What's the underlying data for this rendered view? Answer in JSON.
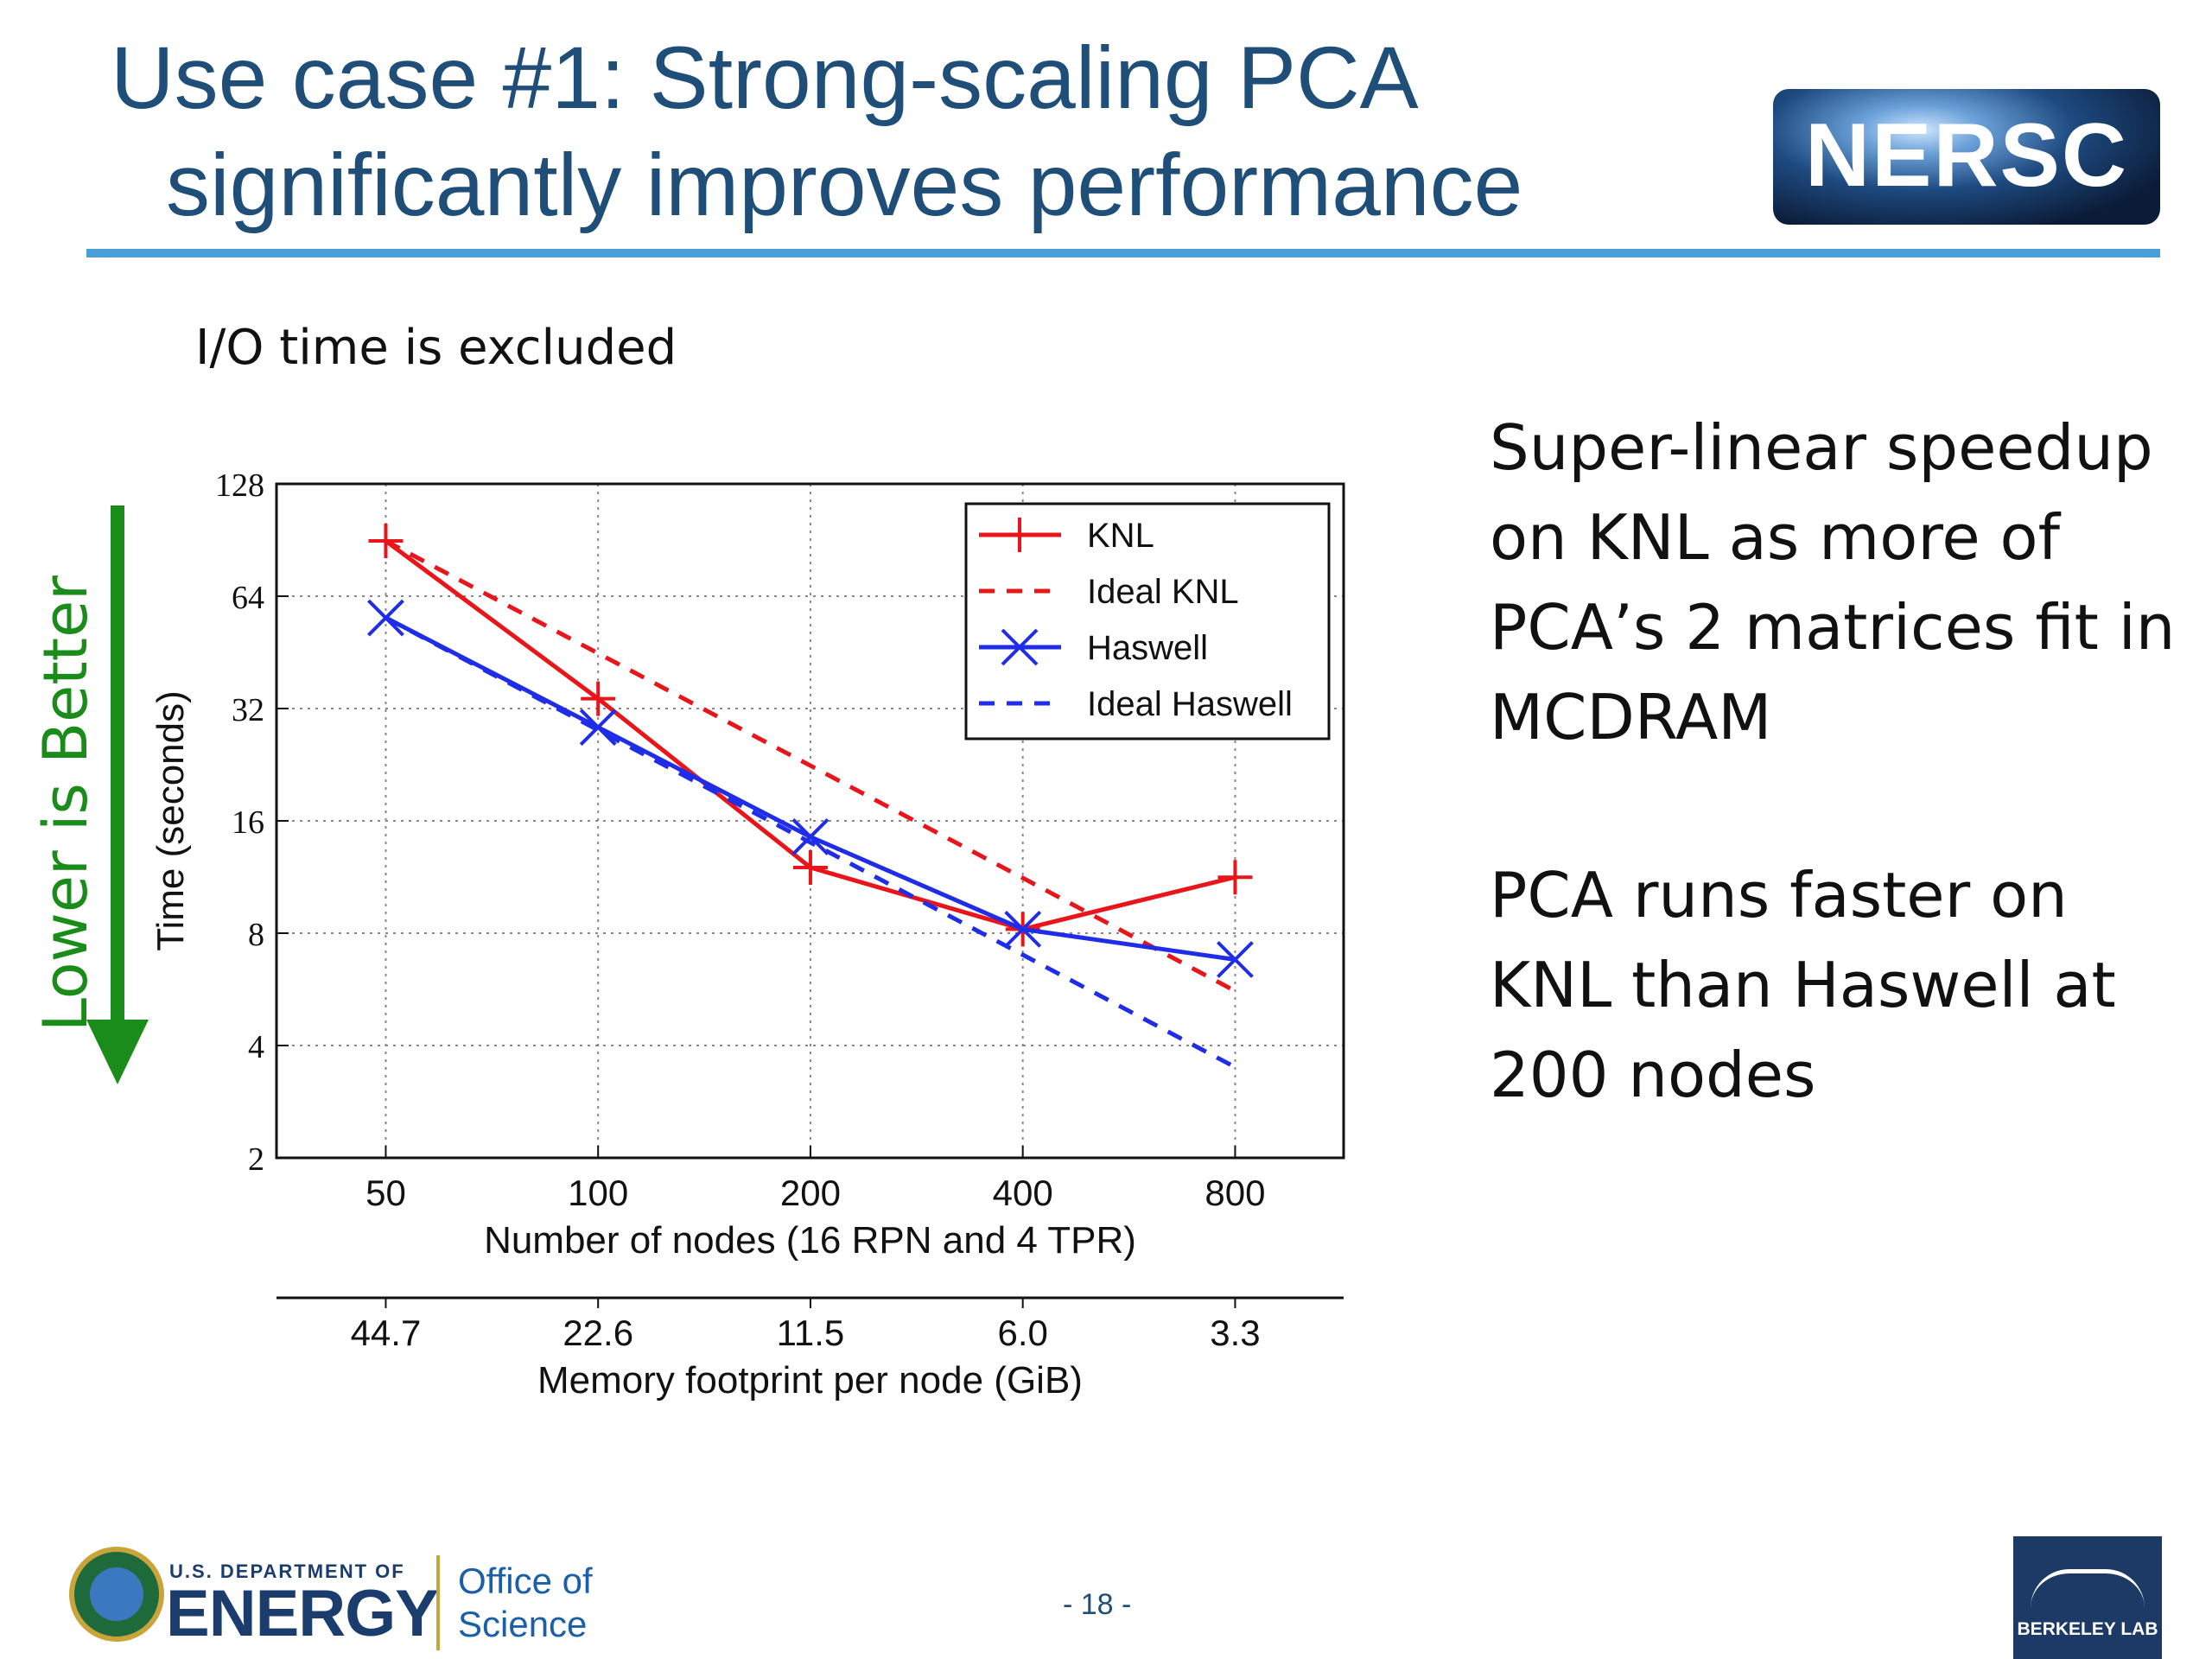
{
  "slide": {
    "title_line1": "Use case #1: Strong-scaling PCA",
    "title_line2": "significantly improves performance",
    "logo_text": "NERSC",
    "subtitle": "I/O time is excluded",
    "side_text": [
      "Super-linear speedup on KNL as more of PCA’s 2 matrices fit in MCDRAM",
      "PCA runs faster on KNL than Haswell at 200 nodes"
    ],
    "lower_label": "Lower is Better",
    "page_number": "- 18 -",
    "footer": {
      "dept": "U.S. DEPARTMENT OF",
      "energy": "ENERGY",
      "office_line1": "Office of",
      "office_line2": "Science",
      "lab": "BERKELEY LAB"
    },
    "colors": {
      "title": "#1f4e79",
      "rule": "#4a9fd8",
      "knl": "#e8161b",
      "haswell": "#1f2de8",
      "lower_label": "#1a8c1a"
    }
  },
  "chart_data": {
    "type": "line",
    "x": [
      50,
      100,
      200,
      400,
      800
    ],
    "x_tick_labels": [
      "50",
      "100",
      "200",
      "400",
      "800"
    ],
    "secondary_x_tick_labels": [
      "44.7",
      "22.6",
      "11.5",
      "6.0",
      "3.3"
    ],
    "xlabel": "Number of nodes (16 RPN and 4 TPR)",
    "secondary_xlabel": "Memory footprint per node (GiB)",
    "ylabel": "Time (seconds)",
    "y_scale": "log2",
    "ylim": [
      2,
      128
    ],
    "y_ticks": [
      2,
      4,
      8,
      16,
      32,
      64,
      128
    ],
    "x_scale": "log2",
    "xlim": [
      35,
      1140
    ],
    "grid": true,
    "legend_position": "top-right",
    "series": [
      {
        "name": "KNL",
        "values": [
          90,
          34,
          12,
          8.2,
          11.3
        ],
        "style": "solid",
        "marker": "plus",
        "color": "#e8161b"
      },
      {
        "name": "Ideal KNL",
        "values": [
          90,
          45,
          22.5,
          11.25,
          5.6
        ],
        "style": "dashed",
        "marker": "none",
        "color": "#e8161b"
      },
      {
        "name": "Haswell",
        "values": [
          56,
          28.5,
          14.5,
          8.2,
          6.8
        ],
        "style": "solid",
        "marker": "x",
        "color": "#1f2de8"
      },
      {
        "name": "Ideal Haswell",
        "values": [
          56,
          28,
          14,
          7,
          3.5
        ],
        "style": "dashed",
        "marker": "none",
        "color": "#1f2de8"
      }
    ]
  }
}
